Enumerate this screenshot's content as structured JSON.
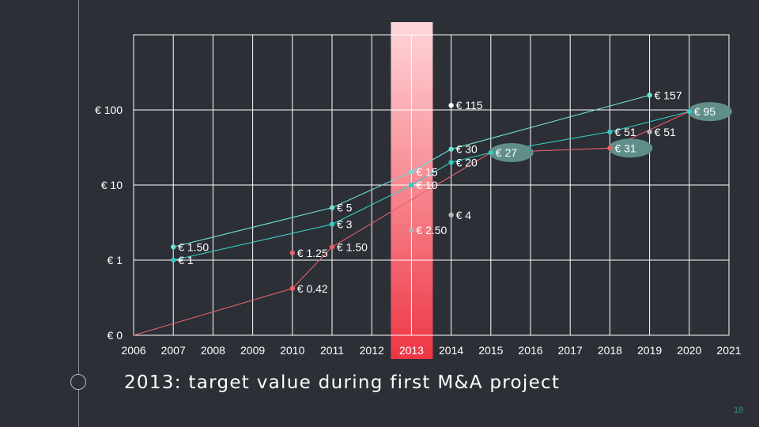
{
  "slide": {
    "caption": "2013: target value during first M&A project",
    "page_number": "18"
  },
  "colors": {
    "background": "#2c2f36",
    "grid": "#ffffff",
    "highlight_top": "#ffd6da",
    "highlight_bottom": "#ee3644",
    "series_cyan_light": "#6fe0d4",
    "series_cyan": "#35c9c2",
    "series_red": "#e8606a",
    "series_white": "#ffffff",
    "series_gray": "#b7b3b6",
    "callout": "#5f8f88"
  },
  "chart_data": {
    "type": "line",
    "x_axis": {
      "min": 2006,
      "max": 2021,
      "ticks": [
        "2006",
        "2007",
        "2008",
        "2009",
        "2010",
        "2011",
        "2012",
        "2013",
        "2014",
        "2015",
        "2016",
        "2017",
        "2018",
        "2019",
        "2020",
        "2021"
      ]
    },
    "y_axis": {
      "scale": "log",
      "ticks": [
        {
          "value": 0.1,
          "label": "€ 0"
        },
        {
          "value": 1,
          "label": "€ 1"
        },
        {
          "value": 10,
          "label": "€ 10"
        },
        {
          "value": 100,
          "label": "€ 100"
        }
      ],
      "max": 1000
    },
    "highlight": {
      "year": 2013,
      "label": "2013"
    },
    "series": [
      {
        "color_key": "series_cyan_light",
        "line": true,
        "points": [
          {
            "x": 2007,
            "y": 1.5,
            "label": "€ 1.50"
          },
          {
            "x": 2011,
            "y": 5,
            "label": "€ 5"
          },
          {
            "x": 2013,
            "y": 15,
            "label": "€ 15"
          },
          {
            "x": 2014,
            "y": 30,
            "label": "€ 30"
          },
          {
            "x": 2019,
            "y": 157,
            "label": "€ 157"
          }
        ]
      },
      {
        "color_key": "series_cyan",
        "line": true,
        "points": [
          {
            "x": 2007,
            "y": 1,
            "label": "€ 1"
          },
          {
            "x": 2011,
            "y": 3,
            "label": "€ 3"
          },
          {
            "x": 2013,
            "y": 10,
            "label": "€ 10"
          },
          {
            "x": 2014,
            "y": 20,
            "label": "€ 20"
          },
          {
            "x": 2015,
            "y": 27,
            "label": "€ 27",
            "callout": true
          },
          {
            "x": 2018,
            "y": 51,
            "label": "€ 51"
          },
          {
            "x": 2020,
            "y": 95,
            "label": "€ 95",
            "callout": true
          }
        ]
      },
      {
        "color_key": "series_red",
        "line": true,
        "points": [
          {
            "x": 2006,
            "y": 0.1,
            "label": ""
          },
          {
            "x": 2010,
            "y": 0.42,
            "label": "€ 0.42"
          },
          {
            "x": 2011,
            "y": 1.5,
            "label": "€ 1.50"
          },
          {
            "x": 2015,
            "y": 27,
            "label": ""
          },
          {
            "x": 2018,
            "y": 31,
            "label": "€ 31",
            "callout": true
          },
          {
            "x": 2020,
            "y": 95,
            "label": ""
          }
        ]
      },
      {
        "color_key": "series_red",
        "line": false,
        "points": [
          {
            "x": 2010,
            "y": 1.25,
            "label": "€ 1.25"
          }
        ]
      },
      {
        "color_key": "series_white",
        "line": false,
        "points": [
          {
            "x": 2014,
            "y": 115,
            "label": "€ 115"
          }
        ]
      },
      {
        "color_key": "series_gray",
        "line": false,
        "points": [
          {
            "x": 2013,
            "y": 2.5,
            "label": "€ 2.50"
          },
          {
            "x": 2014,
            "y": 4,
            "label": "€ 4"
          },
          {
            "x": 2019,
            "y": 51,
            "label": "€ 51"
          }
        ]
      }
    ]
  }
}
